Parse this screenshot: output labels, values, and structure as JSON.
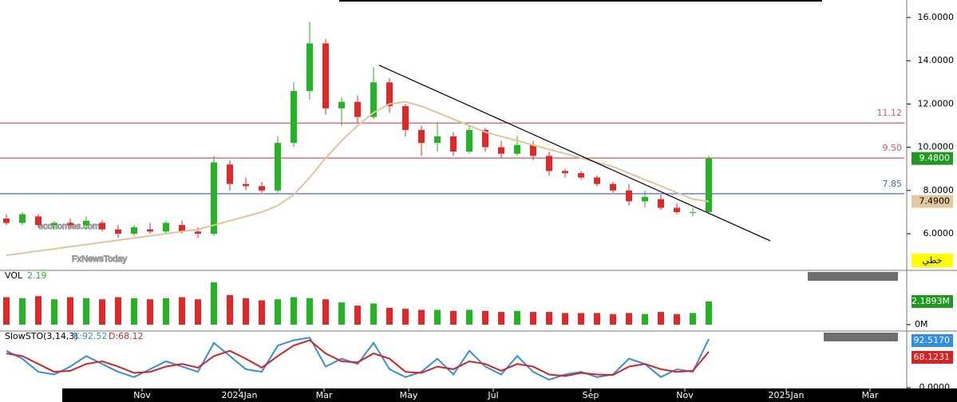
{
  "chart_data": [
    {
      "type": "candlestick",
      "annotations": [
        "economies.com",
        "FxNewsToday"
      ],
      "x": [
        0,
        1,
        2,
        3,
        4,
        5,
        6,
        7,
        8,
        9,
        10,
        11,
        12,
        13,
        14,
        15,
        16,
        17,
        18,
        19,
        20,
        21,
        22,
        23,
        24,
        25,
        26,
        27,
        28,
        29,
        30,
        31,
        32,
        33,
        34,
        35,
        36,
        37,
        38,
        39,
        40,
        41,
        42,
        43,
        44
      ],
      "open": [
        6.7,
        6.5,
        6.8,
        6.4,
        6.5,
        6.4,
        6.5,
        6.2,
        6.0,
        6.2,
        6.1,
        6.4,
        6.1,
        6.0,
        9.2,
        8.3,
        8.2,
        8.0,
        10.2,
        12.6,
        14.8,
        11.8,
        12.1,
        11.4,
        13.0,
        11.9,
        10.8,
        10.2,
        10.5,
        9.8,
        10.8,
        10.0,
        9.7,
        10.1,
        9.6,
        8.9,
        8.8,
        8.6,
        8.3,
        8.0,
        7.5,
        7.6,
        7.2,
        7.0,
        7.0
      ],
      "high": [
        6.9,
        7.0,
        6.9,
        6.6,
        6.7,
        6.8,
        6.6,
        6.4,
        6.4,
        6.5,
        6.6,
        6.6,
        6.3,
        9.6,
        9.4,
        8.6,
        8.4,
        10.5,
        13.0,
        15.8,
        15.0,
        12.3,
        12.4,
        13.7,
        13.2,
        12.0,
        11.0,
        11.1,
        10.7,
        11.0,
        10.9,
        10.3,
        10.5,
        10.3,
        9.8,
        9.0,
        8.9,
        8.7,
        8.4,
        8.3,
        8.0,
        7.8,
        7.4,
        7.2,
        9.6
      ],
      "low": [
        6.4,
        6.4,
        6.3,
        6.2,
        6.3,
        6.2,
        6.1,
        5.8,
        5.9,
        6.0,
        6.0,
        6.0,
        5.8,
        5.9,
        8.0,
        8.0,
        7.9,
        7.9,
        10.0,
        12.2,
        11.5,
        11.0,
        11.1,
        11.3,
        11.6,
        10.5,
        9.6,
        9.8,
        9.6,
        9.7,
        9.8,
        9.5,
        9.6,
        9.4,
        8.7,
        8.6,
        8.5,
        8.2,
        7.9,
        7.3,
        7.2,
        7.1,
        6.9,
        6.8,
        6.9
      ],
      "close": [
        6.5,
        6.9,
        6.4,
        6.5,
        6.4,
        6.6,
        6.2,
        6.0,
        6.3,
        6.1,
        6.5,
        6.1,
        6.0,
        9.3,
        8.3,
        8.2,
        8.0,
        10.2,
        12.6,
        14.8,
        11.8,
        12.1,
        11.4,
        13.0,
        11.9,
        10.8,
        10.2,
        10.5,
        9.8,
        10.8,
        10.0,
        9.7,
        10.1,
        9.6,
        8.9,
        8.8,
        8.6,
        8.3,
        8.0,
        7.5,
        7.7,
        7.2,
        7.0,
        7.0,
        9.48
      ],
      "ma": [
        5.0,
        5.1,
        5.2,
        5.3,
        5.4,
        5.5,
        5.6,
        5.7,
        5.8,
        5.9,
        6.0,
        6.1,
        6.2,
        6.4,
        6.6,
        6.8,
        7.0,
        7.3,
        7.8,
        8.6,
        9.5,
        10.3,
        11.0,
        11.6,
        12.0,
        12.1,
        11.9,
        11.6,
        11.3,
        11.0,
        10.7,
        10.5,
        10.3,
        10.1,
        9.9,
        9.7,
        9.5,
        9.3,
        9.1,
        8.8,
        8.5,
        8.2,
        7.9,
        7.6,
        7.49
      ],
      "up_color": "#22b422",
      "down_color": "#e02828",
      "ma_color": "#e0c596",
      "xlim": [
        -0.4,
        56.35
      ],
      "xticks": [
        {
          "value": 8.5,
          "label": "Nov"
        },
        {
          "value": 14.6,
          "label": "2024Jan"
        },
        {
          "value": 19.9,
          "label": "Mar"
        },
        {
          "value": 25.2,
          "label": "May"
        },
        {
          "value": 30.5,
          "label": "Jul"
        },
        {
          "value": 36.6,
          "label": "Sep"
        },
        {
          "value": 42.5,
          "label": "Nov"
        },
        {
          "value": 48.85,
          "label": "2025Jan"
        },
        {
          "value": 54.1,
          "label": "Mar"
        }
      ],
      "ylim": [
        4.34,
        16.81
      ],
      "yticks": [
        {
          "value": 6,
          "label": "6.0000"
        },
        {
          "value": 8,
          "label": "8.0000"
        },
        {
          "value": 10,
          "label": "10.0000"
        },
        {
          "value": 12,
          "label": "12.0000"
        },
        {
          "value": 14,
          "label": "14.0000"
        },
        {
          "value": 16,
          "label": "16.0000"
        }
      ],
      "levels": [
        {
          "value": 11.12,
          "label": "11.12",
          "color": "#e8505e"
        },
        {
          "value": 9.5,
          "label": "9.50",
          "color": "#e8505e"
        },
        {
          "value": 7.85,
          "label": "7.85",
          "color": "#4a64e0"
        }
      ],
      "trendline": {
        "x": [
          23.35,
          47.85
        ],
        "y": [
          13.79,
          5.67
        ]
      },
      "markers": [
        {
          "value": 9.48,
          "label": "9.4800",
          "color": "#1f9a1f",
          "text_color": "#ffffff"
        },
        {
          "value": 7.49,
          "label": "7.4900",
          "color": "#e0c99c",
          "text_color": "#000000"
        }
      ],
      "mode_label": "خطي"
    },
    {
      "type": "bar",
      "name": "VOL",
      "legend_value": "2.19",
      "values": [
        2.6,
        2.5,
        2.7,
        2.4,
        2.6,
        2.5,
        2.4,
        2.6,
        2.5,
        2.4,
        2.5,
        2.6,
        2.4,
        4.0,
        2.8,
        2.5,
        2.3,
        2.4,
        2.6,
        2.5,
        2.4,
        2.1,
        1.8,
        2.0,
        1.6,
        1.5,
        1.4,
        1.4,
        1.3,
        1.4,
        1.3,
        1.2,
        1.3,
        1.2,
        1.2,
        1.1,
        1.1,
        1.1,
        1.0,
        1.1,
        1.0,
        1.2,
        1.0,
        1.1,
        2.1893
      ],
      "ylim": [
        0,
        5.06
      ],
      "yticks": [
        {
          "value": 0,
          "label": "0M"
        }
      ],
      "marker": {
        "value": 2.1893,
        "label": "2.1893M",
        "color": "#1f9a1f"
      }
    },
    {
      "type": "line",
      "name": "SlowSTO(3,14,3)",
      "series": [
        {
          "name": "K:92.52",
          "color": "#2f8fe8",
          "values": [
            70,
            55,
            30,
            25,
            40,
            60,
            45,
            30,
            20,
            35,
            50,
            40,
            30,
            85,
            60,
            35,
            30,
            80,
            90,
            95,
            40,
            55,
            45,
            85,
            35,
            20,
            30,
            55,
            25,
            70,
            40,
            25,
            60,
            30,
            15,
            25,
            30,
            20,
            25,
            55,
            45,
            20,
            35,
            30,
            92.517
          ],
          "value_label": "92.5170"
        },
        {
          "name": "D:68.12",
          "color": "#e01e1e",
          "values": [
            65,
            60,
            45,
            30,
            32,
            45,
            50,
            40,
            28,
            30,
            40,
            45,
            38,
            60,
            70,
            55,
            38,
            60,
            80,
            90,
            65,
            50,
            48,
            65,
            55,
            30,
            28,
            40,
            35,
            50,
            45,
            32,
            45,
            40,
            25,
            22,
            28,
            25,
            24,
            40,
            45,
            35,
            30,
            32,
            68.1231
          ],
          "value_label": "68.1231"
        }
      ],
      "ylim": [
        0,
        100
      ],
      "yticks": [
        {
          "value": 0,
          "label": "0.0000"
        }
      ]
    }
  ]
}
